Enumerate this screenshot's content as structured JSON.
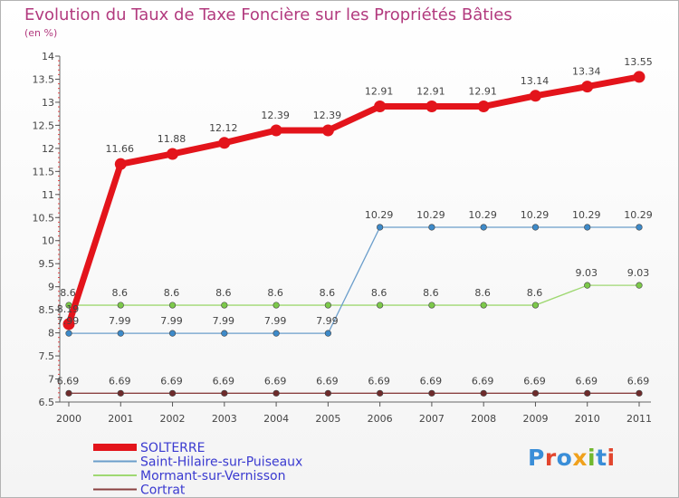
{
  "title": "Evolution du Taux de Taxe Foncière sur les Propriétés Bâties",
  "unit": "(en %)",
  "logo": {
    "text": "Proxiti",
    "colors": [
      "#3a8ed8",
      "#e2462e",
      "#3a8ed8",
      "#f0a11c",
      "#71b82f",
      "#3a8ed8",
      "#e2462e"
    ]
  },
  "chart_data": {
    "type": "line",
    "title": "Evolution du Taux de Taxe Foncière sur les Propriétés Bâties",
    "ylabel": "(en %)",
    "xlabel": "",
    "grid": false,
    "legend": "bottom-left",
    "x": [
      "2000",
      "2001",
      "2002",
      "2003",
      "2004",
      "2005",
      "2006",
      "2007",
      "2008",
      "2009",
      "2010",
      "2011"
    ],
    "ylim": [
      6.5,
      14
    ],
    "yticks": [
      6.5,
      7,
      7.5,
      8,
      8.5,
      9,
      9.5,
      10,
      10.5,
      11,
      11.5,
      12,
      12.5,
      13,
      13.5,
      14
    ],
    "ytick_labels": [
      "6.5",
      "7",
      "7.5",
      "8",
      "8.5",
      "9",
      "9.5",
      "10",
      "10.5",
      "11",
      "11.5",
      "12",
      "12.5",
      "13",
      "13.5",
      "14"
    ],
    "series": [
      {
        "name": "SOLTERRE",
        "color": "#e3141b",
        "emphasis": true,
        "values": [
          8.19,
          11.66,
          11.88,
          12.12,
          12.39,
          12.39,
          12.91,
          12.91,
          12.91,
          13.14,
          13.34,
          13.55
        ],
        "labels": [
          "8.19",
          "11.66",
          "11.88",
          "12.12",
          "12.39",
          "12.39",
          "12.91",
          "12.91",
          "12.91",
          "13.14",
          "13.34",
          "13.55"
        ]
      },
      {
        "name": "Saint-Hilaire-sur-Puiseaux",
        "color": "#6b9ecb",
        "marker": "#3d8ac9",
        "values": [
          7.99,
          7.99,
          7.99,
          7.99,
          7.99,
          7.99,
          10.29,
          10.29,
          10.29,
          10.29,
          10.29,
          10.29
        ],
        "labels": [
          "7.99",
          "7.99",
          "7.99",
          "7.99",
          "7.99",
          "7.99",
          "10.29",
          "10.29",
          "10.29",
          "10.29",
          "10.29",
          "10.29"
        ]
      },
      {
        "name": "Mormant-sur-Vernisson",
        "color": "#9fd872",
        "marker": "#7cc94a",
        "values": [
          8.6,
          8.6,
          8.6,
          8.6,
          8.6,
          8.6,
          8.6,
          8.6,
          8.6,
          8.6,
          9.03,
          9.03
        ],
        "labels": [
          "8.6",
          "8.6",
          "8.6",
          "8.6",
          "8.6",
          "8.6",
          "8.6",
          "8.6",
          "8.6",
          "8.6",
          "9.03",
          "9.03"
        ]
      },
      {
        "name": "Cortrat",
        "color": "#8a4040",
        "marker": "#6e2b2b",
        "values": [
          6.69,
          6.69,
          6.69,
          6.69,
          6.69,
          6.69,
          6.69,
          6.69,
          6.69,
          6.69,
          6.69,
          6.69
        ],
        "labels": [
          "6.69",
          "6.69",
          "6.69",
          "6.69",
          "6.69",
          "6.69",
          "6.69",
          "6.69",
          "6.69",
          "6.69",
          "6.69",
          "6.69"
        ]
      }
    ]
  }
}
